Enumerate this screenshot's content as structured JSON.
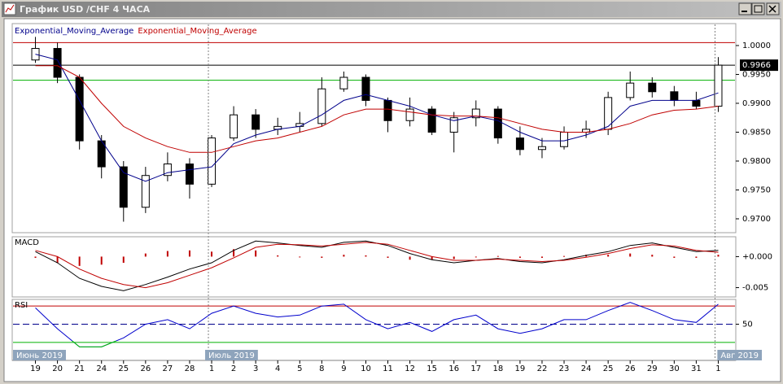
{
  "window": {
    "title": "График USD /CHF 4 ЧАСА"
  },
  "chart_data": [
    {
      "type": "candlestick",
      "categories": [
        "19",
        "20",
        "21",
        "24",
        "25",
        "26",
        "27",
        "28",
        "1",
        "2",
        "3",
        "4",
        "5",
        "8",
        "9",
        "10",
        "11",
        "12",
        "15",
        "16",
        "17",
        "18",
        "19",
        "22",
        "23",
        "24",
        "25",
        "26",
        "29",
        "30",
        "31",
        "1"
      ],
      "period_labels": [
        "Июнь 2019",
        "Июль 2019",
        "Авг 2019"
      ],
      "open": [
        0.9975,
        0.9995,
        0.9945,
        0.9835,
        0.979,
        0.972,
        0.9775,
        0.9795,
        0.976,
        0.984,
        0.988,
        0.9855,
        0.986,
        0.9865,
        0.9925,
        0.9945,
        0.9905,
        0.987,
        0.989,
        0.985,
        0.9875,
        0.989,
        0.984,
        0.982,
        0.9825,
        0.985,
        0.9855,
        0.991,
        0.9935,
        0.992,
        0.9905,
        0.9895
      ],
      "high": [
        1.0015,
        1.0005,
        0.995,
        0.9845,
        0.98,
        0.979,
        0.9815,
        0.9805,
        0.9845,
        0.9895,
        0.989,
        0.9875,
        0.9885,
        0.9945,
        0.9955,
        0.995,
        0.991,
        0.991,
        0.9895,
        0.9885,
        0.9905,
        0.9895,
        0.986,
        0.984,
        0.986,
        0.987,
        0.992,
        0.9955,
        0.9945,
        0.993,
        0.992,
        0.998
      ],
      "low": [
        0.997,
        0.9935,
        0.982,
        0.977,
        0.9695,
        0.971,
        0.9765,
        0.9735,
        0.9755,
        0.9835,
        0.984,
        0.9845,
        0.985,
        0.986,
        0.992,
        0.9895,
        0.985,
        0.986,
        0.9845,
        0.9815,
        0.986,
        0.983,
        0.981,
        0.9805,
        0.982,
        0.984,
        0.9845,
        0.9905,
        0.991,
        0.9895,
        0.989,
        0.9885
      ],
      "close": [
        0.9995,
        0.9945,
        0.9835,
        0.979,
        0.972,
        0.9775,
        0.9795,
        0.976,
        0.984,
        0.988,
        0.9855,
        0.986,
        0.9865,
        0.9925,
        0.9945,
        0.9905,
        0.987,
        0.989,
        0.985,
        0.9875,
        0.989,
        0.984,
        0.982,
        0.9825,
        0.985,
        0.9855,
        0.991,
        0.9935,
        0.992,
        0.9905,
        0.9895,
        0.9966
      ],
      "up_color": "#ffffff",
      "down_color": "#000000",
      "series": [
        {
          "name": "Exponential_Moving_Average",
          "color": "#00008b",
          "values": [
            0.9985,
            0.9975,
            0.9905,
            0.9835,
            0.978,
            0.9765,
            0.978,
            0.9785,
            0.979,
            0.983,
            0.9845,
            0.9855,
            0.986,
            0.988,
            0.9905,
            0.9915,
            0.9905,
            0.9895,
            0.988,
            0.987,
            0.9878,
            0.987,
            0.985,
            0.9835,
            0.9835,
            0.9845,
            0.986,
            0.9895,
            0.9905,
            0.9905,
            0.9905,
            0.9918
          ]
        },
        {
          "name": "Exponential_Moving_Average",
          "color": "#c00000",
          "values": [
            0.9965,
            0.9965,
            0.9945,
            0.99,
            0.986,
            0.984,
            0.9825,
            0.9815,
            0.9815,
            0.9825,
            0.9835,
            0.984,
            0.985,
            0.986,
            0.988,
            0.989,
            0.989,
            0.9885,
            0.988,
            0.9878,
            0.9878,
            0.9875,
            0.9865,
            0.9855,
            0.985,
            0.985,
            0.9855,
            0.9865,
            0.988,
            0.9888,
            0.989,
            0.9895
          ]
        }
      ],
      "levels": [
        {
          "value": 1.0005,
          "color": "#c00000"
        },
        {
          "value": 0.994,
          "color": "#00b000"
        }
      ],
      "last_price": {
        "value": 0.9966,
        "label": "0.9966"
      },
      "ylim": [
        0.9676,
        1.0038
      ],
      "yticks": [
        {
          "value": 1.0,
          "label": "1.0000"
        },
        {
          "value": 0.995,
          "label": "0.9950"
        },
        {
          "value": 0.99,
          "label": "0.9900"
        },
        {
          "value": 0.985,
          "label": "0.9850"
        },
        {
          "value": 0.98,
          "label": "0.9800"
        },
        {
          "value": 0.975,
          "label": "0.9750"
        },
        {
          "value": 0.97,
          "label": "0.9700"
        }
      ]
    },
    {
      "type": "macd",
      "title": "MACD",
      "series": [
        {
          "color": "#000000",
          "values": [
            0.0008,
            -0.001,
            -0.0035,
            -0.0048,
            -0.0055,
            -0.0045,
            -0.0033,
            -0.002,
            -0.001,
            0.001,
            0.0025,
            0.0022,
            0.0018,
            0.0015,
            0.0023,
            0.0025,
            0.0018,
            0.0005,
            -0.0005,
            -0.001,
            -0.0006,
            -0.0003,
            -0.0008,
            -0.001,
            -0.0005,
            0.0002,
            0.0008,
            0.0018,
            0.0022,
            0.0015,
            0.0008,
            0.001
          ]
        },
        {
          "color": "#c00000",
          "values": [
            0.001,
            0,
            -0.002,
            -0.0035,
            -0.0045,
            -0.005,
            -0.0042,
            -0.003,
            -0.0018,
            -0.0002,
            0.0015,
            0.002,
            0.0019,
            0.0017,
            0.002,
            0.0023,
            0.002,
            0.001,
            0,
            -0.0006,
            -0.0006,
            -0.0004,
            -0.0006,
            -0.0008,
            -0.0006,
            -0.0001,
            0.0005,
            0.0013,
            0.0019,
            0.0017,
            0.001,
            0.0007
          ]
        }
      ],
      "histogram": {
        "color": "#c00000",
        "values": [
          -0.0002,
          -0.001,
          -0.0015,
          -0.0013,
          -0.001,
          0.0005,
          0.0009,
          0.001,
          0.0008,
          0.0012,
          0.001,
          0.0002,
          -0.0001,
          -0.0002,
          0.0003,
          0.0002,
          -0.0002,
          -0.0005,
          -0.0005,
          -0.0004,
          0,
          0.0001,
          -0.0002,
          -0.0002,
          0.0001,
          0.0003,
          0.0003,
          0.0005,
          0.0003,
          -0.0002,
          -0.0002,
          0.0003
        ]
      },
      "ylim": [
        -0.0065,
        0.0032
      ],
      "yticks": [
        {
          "value": 0,
          "label": "+0.000"
        },
        {
          "value": -0.005,
          "label": "-0.005"
        }
      ]
    },
    {
      "type": "rsi",
      "title": "RSI",
      "color": "#0000cc",
      "low_color": "#00c000",
      "values": [
        68,
        45,
        25,
        25,
        35,
        50,
        55,
        45,
        62,
        70,
        62,
        58,
        60,
        70,
        72,
        55,
        45,
        52,
        42,
        55,
        60,
        45,
        40,
        45,
        55,
        55,
        65,
        74,
        65,
        55,
        52,
        72
      ],
      "levels": [
        {
          "value": 70,
          "color": "#c00000"
        },
        {
          "value": 50,
          "color": "#00008b"
        },
        {
          "value": 30,
          "color": "#00b000"
        }
      ],
      "ylim": [
        22.7,
        77.3
      ],
      "yticks": [
        50
      ]
    }
  ]
}
